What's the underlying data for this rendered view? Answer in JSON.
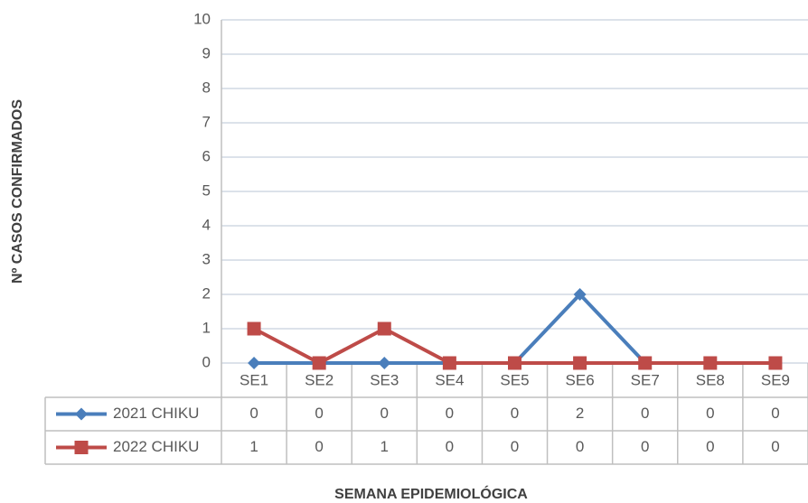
{
  "chart_data": {
    "type": "line",
    "categories": [
      "SE1",
      "SE2",
      "SE3",
      "SE4",
      "SE5",
      "SE6",
      "SE7",
      "SE8",
      "SE9"
    ],
    "series": [
      {
        "name": "2021 CHIKU",
        "color": "#4a7ebb",
        "marker": "diamond",
        "values": [
          0,
          0,
          0,
          0,
          0,
          2,
          0,
          0,
          0
        ]
      },
      {
        "name": "2022 CHIKU",
        "color": "#be4b48",
        "marker": "square",
        "values": [
          1,
          0,
          1,
          0,
          0,
          0,
          0,
          0,
          0
        ]
      }
    ],
    "ylim": [
      0,
      10
    ],
    "yticks": [
      0,
      1,
      2,
      3,
      4,
      5,
      6,
      7,
      8,
      9,
      10
    ],
    "grid": true,
    "y_label": "Nº CASOS CONFIRMADOS",
    "x_label": "SEMANA EPIDEMIOLÓGICA",
    "data_table": true
  }
}
